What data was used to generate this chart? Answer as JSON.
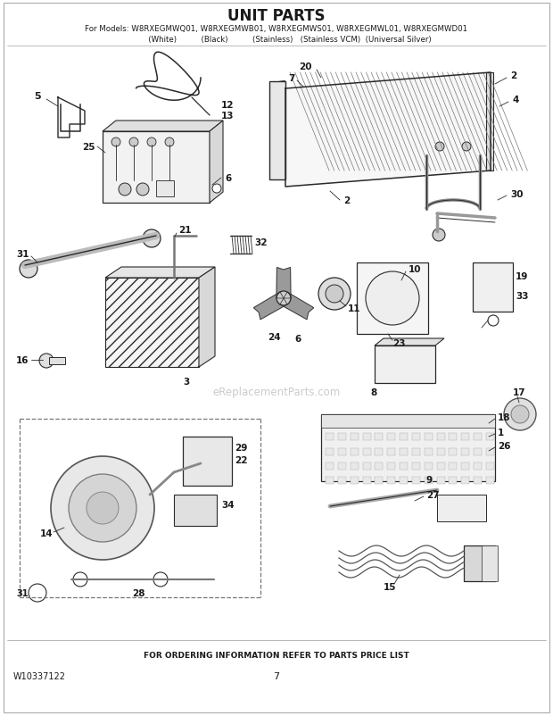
{
  "title": "UNIT PARTS",
  "subtitle_line1": "For Models: W8RXEGMWQ01, W8RXEGMWB01, W8RXEGMWS01, W8RXEGMWL01, W8RXEGMWD01",
  "subtitle_line2": "           (White)          (Black)          (Stainless)   (Stainless VCM)  (Universal Silver)",
  "footer_left": "W10337122",
  "footer_center": "FOR ORDERING INFORMATION REFER TO PARTS PRICE LIST",
  "footer_page": "7",
  "watermark": "eReplacementParts.com",
  "bg_color": "#ffffff",
  "lc": "#2a2a2a",
  "tc": "#1a1a1a",
  "figsize": [
    6.2,
    8.03
  ],
  "dpi": 100
}
